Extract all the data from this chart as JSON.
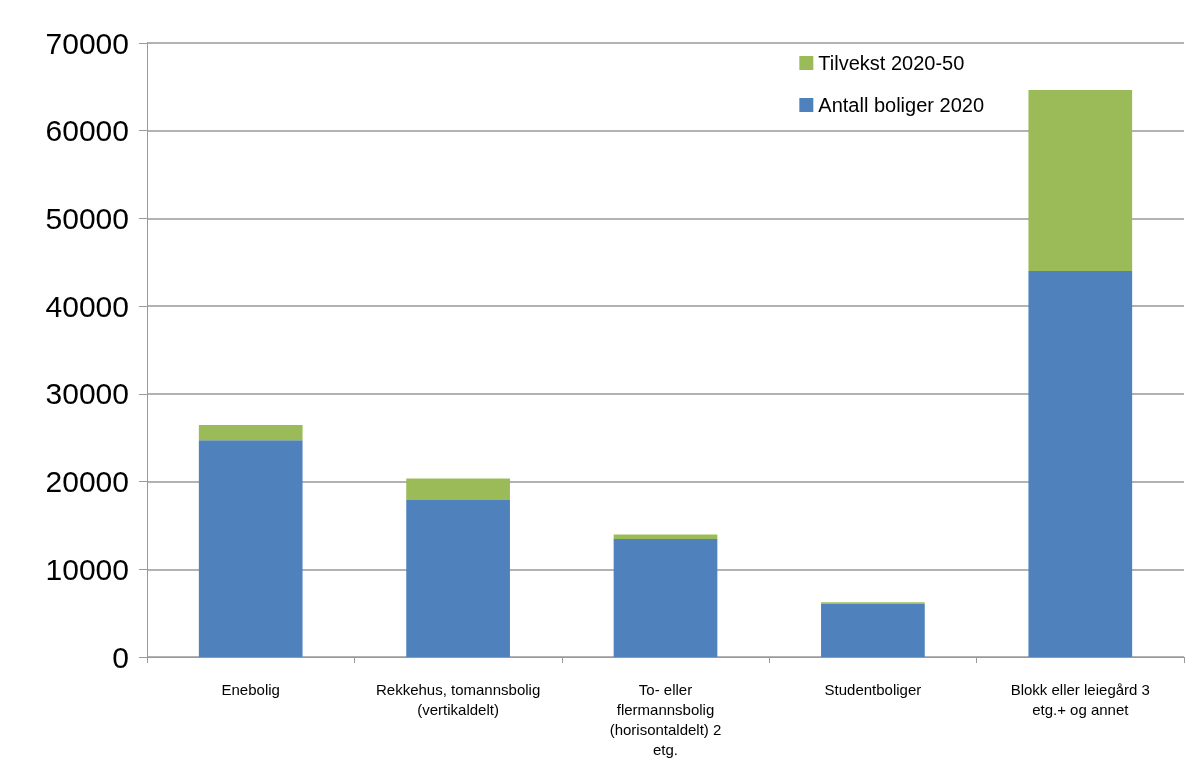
{
  "chart_data": {
    "type": "bar",
    "stacked": true,
    "categories": [
      "Enebolig",
      "Rekkehus, tomannsbolig (vertikaldelt)",
      "To- eller flermannsbolig (horisontaldelt) 2 etg.",
      "Studentboliger",
      "Blokk eller leiegård 3 etg.+ og annet"
    ],
    "series": [
      {
        "name": "Antall boliger 2020",
        "color": "#4f81bd",
        "values": [
          24700,
          17900,
          13450,
          6100,
          44000
        ]
      },
      {
        "name": "Tilvekst 2020-50",
        "color": "#9bbb59",
        "values": [
          1750,
          2450,
          520,
          150,
          20650
        ]
      }
    ],
    "ylim": [
      0,
      70000
    ],
    "yticks": [
      0,
      10000,
      20000,
      30000,
      40000,
      50000,
      60000,
      70000
    ],
    "grid": "y",
    "legend": "top right"
  }
}
